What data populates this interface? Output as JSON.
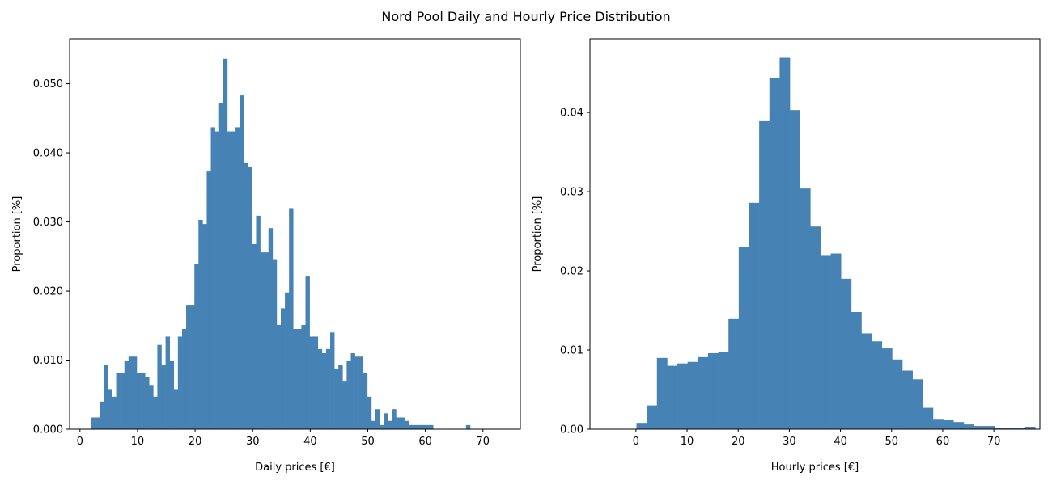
{
  "figure": {
    "title": "Nord Pool Daily and Hourly Price Distribution",
    "bar_color": "#4682b4"
  },
  "chart_data": [
    {
      "type": "bar",
      "name": "daily",
      "xlabel": "Daily prices [€]",
      "ylabel": "Proportion [%]",
      "xlim": [
        -1.8,
        76.5
      ],
      "ylim": [
        0,
        0.0565
      ],
      "xticks": [
        0,
        10,
        20,
        30,
        40,
        50,
        60,
        70
      ],
      "yticks": [
        0.0,
        0.01,
        0.02,
        0.03,
        0.04,
        0.05
      ],
      "ytick_labels": [
        "0.000",
        "0.010",
        "0.020",
        "0.030",
        "0.040",
        "0.050"
      ],
      "bin_start": 2.0,
      "bin_width": 0.715,
      "values": [
        0.0017,
        0.0017,
        0.004,
        0.0093,
        0.0058,
        0.0047,
        0.0081,
        0.0081,
        0.0099,
        0.0105,
        0.0105,
        0.0081,
        0.0081,
        0.0076,
        0.0064,
        0.0047,
        0.0122,
        0.0093,
        0.0134,
        0.0099,
        0.0058,
        0.0134,
        0.0145,
        0.018,
        0.018,
        0.0239,
        0.0303,
        0.0297,
        0.0373,
        0.0437,
        0.0431,
        0.0472,
        0.0536,
        0.0431,
        0.0431,
        0.0437,
        0.0483,
        0.0385,
        0.0379,
        0.0268,
        0.0309,
        0.0256,
        0.0256,
        0.0291,
        0.0245,
        0.0151,
        0.0175,
        0.0198,
        0.032,
        0.0145,
        0.0145,
        0.0151,
        0.0221,
        0.0134,
        0.0134,
        0.0116,
        0.011,
        0.0116,
        0.014,
        0.0087,
        0.0093,
        0.007,
        0.0099,
        0.011,
        0.0105,
        0.0105,
        0.0081,
        0.0047,
        0.0012,
        0.0029,
        0.0006,
        0.0023,
        0.0012,
        0.0029,
        0.0017,
        0.0017,
        0.0012,
        0.0006,
        0.0006,
        0.0006,
        0.0006,
        0.0006,
        0.0006,
        0.0,
        0.0,
        0.0,
        0.0,
        0.0,
        0.0,
        0.0,
        0.0,
        0.0006,
        0.0,
        0.0,
        0.0,
        0.0,
        0.0,
        0.0,
        0.0,
        0.0
      ]
    },
    {
      "type": "bar",
      "name": "hourly",
      "xlabel": "Hourly prices [€]",
      "ylabel": "Proportion [%]",
      "xlim": [
        -9.0,
        79.0
      ],
      "ylim": [
        0,
        0.0493
      ],
      "xticks": [
        0,
        10,
        20,
        30,
        40,
        50,
        60,
        70
      ],
      "yticks": [
        0.0,
        0.01,
        0.02,
        0.03,
        0.04
      ],
      "ytick_labels": [
        "0.00",
        "0.01",
        "0.02",
        "0.03",
        "0.04"
      ],
      "bin_start": 0.1,
      "bin_width": 2.0,
      "values": [
        0.0008,
        0.003,
        0.009,
        0.008,
        0.0083,
        0.0085,
        0.0091,
        0.0096,
        0.0098,
        0.0139,
        0.023,
        0.0286,
        0.0389,
        0.0443,
        0.0469,
        0.0403,
        0.0304,
        0.0256,
        0.0219,
        0.0222,
        0.019,
        0.0148,
        0.0121,
        0.0111,
        0.0102,
        0.0088,
        0.0074,
        0.0063,
        0.0027,
        0.0013,
        0.0012,
        0.0009,
        0.0006,
        0.0004,
        0.0004,
        0.0002,
        0.0002,
        0.0002,
        0.0003
      ]
    }
  ]
}
